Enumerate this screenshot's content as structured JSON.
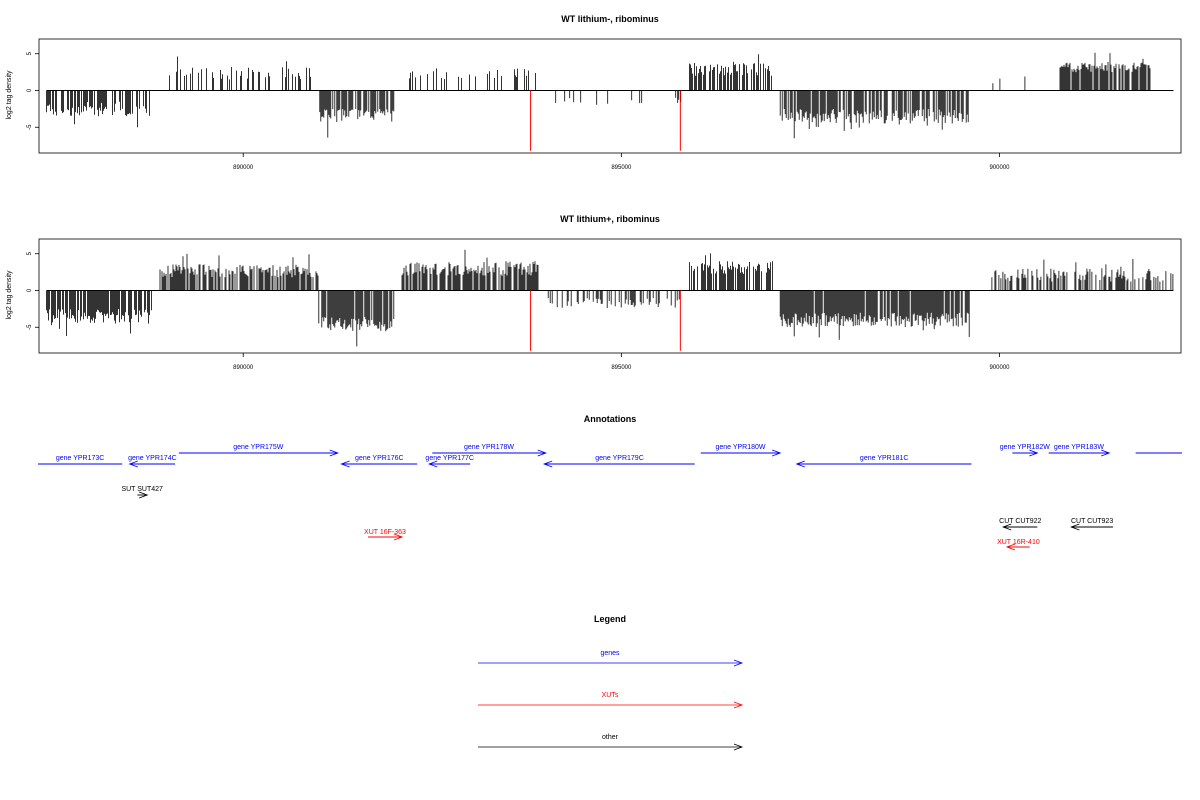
{
  "chart_data": [
    {
      "type": "bar",
      "title": "WT lithium-, ribominus",
      "ylabel": "log2 tag density",
      "xlim": [
        887300,
        902400
      ],
      "ylim": [
        -8.5,
        7
      ],
      "xticks": [
        890000,
        895000,
        900000
      ],
      "xtick_labels": [
        "890000",
        "895000",
        "900000"
      ],
      "yticks": [
        5,
        0,
        -5
      ],
      "ytick_labels": [
        "5",
        "0",
        "-5"
      ],
      "regions": [
        {
          "from": 887400,
          "to": 888800,
          "min": -3.5,
          "max": -1.5,
          "density": 0.6
        },
        {
          "from": 889000,
          "to": 890900,
          "min": 1.5,
          "max": 3.2,
          "density": 0.35
        },
        {
          "from": 891000,
          "to": 892000,
          "min": -4.5,
          "max": -2.5,
          "density": 0.75
        },
        {
          "from": 892200,
          "to": 893900,
          "min": 1.5,
          "max": 3.0,
          "density": 0.3
        },
        {
          "from": 894000,
          "to": 895800,
          "min": -2.0,
          "max": -1.0,
          "density": 0.1
        },
        {
          "from": 895900,
          "to": 897000,
          "min": 2.0,
          "max": 3.8,
          "density": 0.6
        },
        {
          "from": 897100,
          "to": 899600,
          "min": -4.5,
          "max": -2.5,
          "density": 0.75
        },
        {
          "from": 899900,
          "to": 900400,
          "min": 0.8,
          "max": 2.0,
          "density": 0.15
        },
        {
          "from": 900800,
          "to": 902000,
          "min": 2.5,
          "max": 3.8,
          "density": 0.8
        }
      ],
      "red_lines": [
        {
          "x": 893800,
          "y": -8.2
        },
        {
          "x": 895780,
          "y": -8.2
        }
      ],
      "seed": 11
    },
    {
      "type": "bar",
      "title": "WT lithium+, ribominus",
      "ylabel": "log2 tag density",
      "xlim": [
        887300,
        902400
      ],
      "ylim": [
        -8.5,
        7
      ],
      "xticks": [
        890000,
        895000,
        900000
      ],
      "xtick_labels": [
        "890000",
        "895000",
        "900000"
      ],
      "yticks": [
        5,
        0,
        -5
      ],
      "ytick_labels": [
        "5",
        "0",
        "-5"
      ],
      "regions": [
        {
          "from": 887400,
          "to": 888800,
          "min": -4.5,
          "max": -2.5,
          "density": 0.85
        },
        {
          "from": 888900,
          "to": 891000,
          "min": 1.8,
          "max": 3.6,
          "density": 0.75
        },
        {
          "from": 891000,
          "to": 892000,
          "min": -5.5,
          "max": -3.5,
          "density": 0.9
        },
        {
          "from": 892100,
          "to": 893900,
          "min": 2.0,
          "max": 4.0,
          "density": 0.8
        },
        {
          "from": 893900,
          "to": 895800,
          "min": -2.5,
          "max": -1.0,
          "density": 0.35
        },
        {
          "from": 895900,
          "to": 897000,
          "min": 2.2,
          "max": 4.0,
          "density": 0.7
        },
        {
          "from": 897100,
          "to": 899600,
          "min": -5.0,
          "max": -3.0,
          "density": 0.9
        },
        {
          "from": 899900,
          "to": 902300,
          "min": 1.2,
          "max": 3.0,
          "density": 0.55
        }
      ],
      "red_lines": [
        {
          "x": 893800,
          "y": -8.2
        },
        {
          "x": 895780,
          "y": -8.2
        }
      ],
      "seed": 29
    }
  ],
  "annotations": {
    "title": "Annotations",
    "items": [
      {
        "label": "gene YPR173C",
        "color": "#0000ff",
        "row": "gene-low",
        "from": 887250,
        "to": 888400,
        "dir": "none"
      },
      {
        "label": "gene YPR174C",
        "color": "#0000ff",
        "row": "gene-low",
        "from": 888500,
        "to": 889100,
        "dir": "left"
      },
      {
        "label": "gene YPR175W",
        "color": "#0000ff",
        "row": "gene-high",
        "from": 889150,
        "to": 891250,
        "dir": "right"
      },
      {
        "label": "gene YPR176C",
        "color": "#0000ff",
        "row": "gene-low",
        "from": 891300,
        "to": 892300,
        "dir": "left"
      },
      {
        "label": "gene YPR177C",
        "color": "#0000ff",
        "row": "gene-low",
        "from": 892460,
        "to": 893000,
        "dir": "left"
      },
      {
        "label": "gene YPR178W",
        "color": "#0000ff",
        "row": "gene-high",
        "from": 892500,
        "to": 894000,
        "dir": "right"
      },
      {
        "label": "gene YPR179C",
        "color": "#0000ff",
        "row": "gene-low",
        "from": 893980,
        "to": 895970,
        "dir": "left"
      },
      {
        "label": "gene YPR180W",
        "color": "#0000ff",
        "row": "gene-high",
        "from": 896050,
        "to": 897100,
        "dir": "right"
      },
      {
        "label": "gene YPR181C",
        "color": "#0000ff",
        "row": "gene-low",
        "from": 897320,
        "to": 899630,
        "dir": "left"
      },
      {
        "label": "gene YPR182W",
        "color": "#0000ff",
        "row": "gene-high",
        "from": 900170,
        "to": 900500,
        "dir": "right"
      },
      {
        "label": "gene YPR183W",
        "color": "#0000ff",
        "row": "gene-high",
        "from": 900650,
        "to": 901450,
        "dir": "right"
      },
      {
        "label": "",
        "color": "#0000ff",
        "row": "gene-high",
        "from": 901800,
        "to": 902700,
        "dir": "none"
      },
      {
        "label": "SUT SUT427",
        "color": "#000000",
        "row": "other-top",
        "from": 888600,
        "to": 888730,
        "dir": "right"
      },
      {
        "label": "XUT 16F-363",
        "color": "#ff0000",
        "row": "xut-mid",
        "from": 891650,
        "to": 892100,
        "dir": "right"
      },
      {
        "label": "CUT CUT922",
        "color": "#000000",
        "row": "other-mid",
        "from": 900050,
        "to": 900500,
        "dir": "left"
      },
      {
        "label": "CUT CUT923",
        "color": "#000000",
        "row": "other-mid",
        "from": 900950,
        "to": 901500,
        "dir": "left"
      },
      {
        "label": "XUT 16R-410",
        "color": "#ff0000",
        "row": "xut-low",
        "from": 900100,
        "to": 900400,
        "dir": "left"
      }
    ]
  },
  "legend": {
    "title": "Legend",
    "items": [
      {
        "label": "genes",
        "color": "#0000ff"
      },
      {
        "label": "XUTs",
        "color": "#ff0000"
      },
      {
        "label": "other",
        "color": "#000000"
      }
    ]
  }
}
